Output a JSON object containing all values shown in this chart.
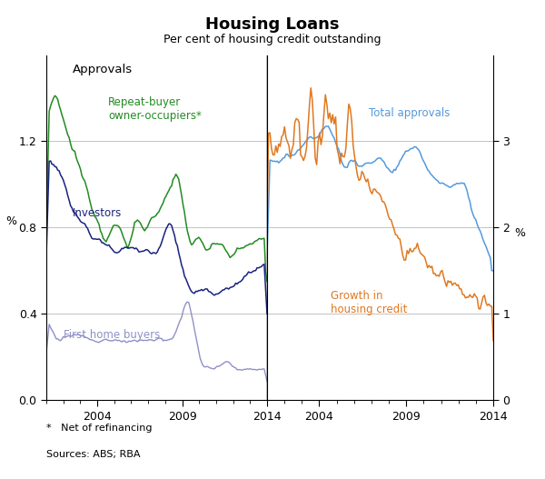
{
  "title": "Housing Loans",
  "subtitle": "Per cent of housing credit outstanding",
  "footnote": "*   Net of refinancing",
  "sources": "Sources: ABS; RBA",
  "left_ylabel": "%",
  "right_ylabel": "%",
  "left_panel_label": "Approvals",
  "left_ylim": [
    0.0,
    1.6
  ],
  "left_yticks": [
    0.0,
    0.4,
    0.8,
    1.2
  ],
  "right_ylim": [
    0.0,
    4.0
  ],
  "right_yticks": [
    0,
    1,
    2,
    3
  ],
  "colors": {
    "repeat_buyer": "#228B22",
    "investors": "#1a237e",
    "first_home": "#9090c8",
    "total_approvals": "#5599dd",
    "growth": "#E07820"
  }
}
